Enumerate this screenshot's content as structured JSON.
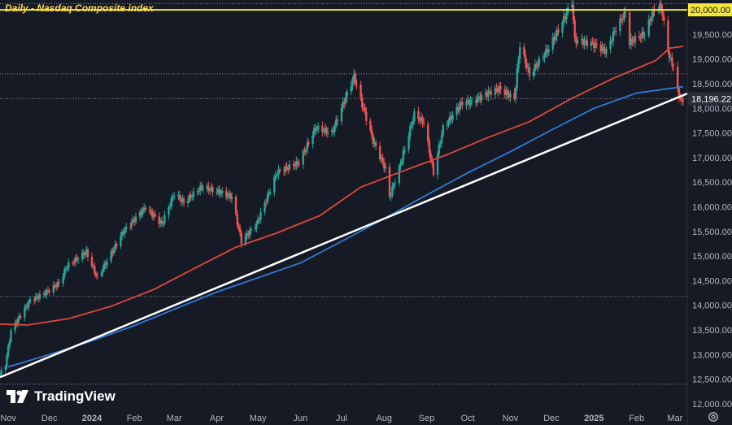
{
  "title": "Daily - Nasdaq Composite index",
  "branding": "TradingView",
  "icons": {
    "logo": "tradingview-logo-icon",
    "settings": "gear-icon"
  },
  "colors": {
    "background": "#161a25",
    "up_candle": "#26a69a",
    "down_candle": "#ef5350",
    "ma_red": "#e0483f",
    "ma_blue": "#2f7bd9",
    "trendline": "#ffffff",
    "resistance_line": "#f5e63c",
    "price_label_bg": "#2a2e39",
    "resistance_label_bg": "#f5e63c"
  },
  "chart_data": {
    "type": "candlestick",
    "title": "Daily - Nasdaq Composite index",
    "x_tick_labels": [
      "Nov",
      "Dec",
      "2024",
      "Feb",
      "Mar",
      "Apr",
      "May",
      "Jun",
      "Jul",
      "Aug",
      "Sep",
      "Oct",
      "Nov",
      "Dec",
      "2025",
      "Feb",
      "Mar"
    ],
    "x_tick_dates": [
      "2023-11-01",
      "2023-12-01",
      "2024-01-01",
      "2024-02-01",
      "2024-03-01",
      "2024-04-01",
      "2024-05-01",
      "2024-06-01",
      "2024-07-01",
      "2024-08-01",
      "2024-09-01",
      "2024-10-01",
      "2024-11-01",
      "2024-12-01",
      "2025-01-01",
      "2025-02-01",
      "2025-03-01"
    ],
    "x_range": [
      "2023-10-26",
      "2025-03-10"
    ],
    "y_tick_labels": [
      "20,000.00",
      "19,500.00",
      "19,000.00",
      "18,500.00",
      "18,196.22",
      "18,000.00",
      "17,500.00",
      "17,000.00",
      "16,500.00",
      "16,000.00",
      "15,500.00",
      "15,000.00",
      "14,500.00",
      "14,000.00",
      "13,500.00",
      "13,000.00",
      "12,500.00",
      "12,000.00"
    ],
    "y_ticks": [
      20000,
      19500,
      19000,
      18500,
      18000,
      17500,
      17000,
      16500,
      16000,
      15500,
      15000,
      14500,
      14000,
      13500,
      13000,
      12500,
      12000
    ],
    "ylim": [
      11900,
      20200
    ],
    "last_price": 18196.22,
    "resistance_level": 20000,
    "dotted_levels": [
      20128,
      18700,
      18196.22,
      14180,
      12400
    ],
    "close_path": [
      [
        "2023-10-26",
        12600
      ],
      [
        "2023-10-30",
        12800
      ],
      [
        "2023-11-03",
        13480
      ],
      [
        "2023-11-10",
        13800
      ],
      [
        "2023-11-17",
        14100
      ],
      [
        "2023-11-28",
        14250
      ],
      [
        "2023-12-08",
        14450
      ],
      [
        "2023-12-14",
        14800
      ],
      [
        "2023-12-28",
        15080
      ],
      [
        "2024-01-05",
        14550
      ],
      [
        "2024-01-12",
        14900
      ],
      [
        "2024-01-24",
        15500
      ],
      [
        "2024-02-09",
        15990
      ],
      [
        "2024-02-21",
        15650
      ],
      [
        "2024-03-01",
        16270
      ],
      [
        "2024-03-08",
        16090
      ],
      [
        "2024-03-21",
        16400
      ],
      [
        "2024-04-03",
        16300
      ],
      [
        "2024-04-12",
        16200
      ],
      [
        "2024-04-19",
        15300
      ],
      [
        "2024-04-30",
        15650
      ],
      [
        "2024-05-15",
        16700
      ],
      [
        "2024-05-31",
        16900
      ],
      [
        "2024-06-12",
        17600
      ],
      [
        "2024-06-24",
        17500
      ],
      [
        "2024-07-03",
        18150
      ],
      [
        "2024-07-10",
        18650
      ],
      [
        "2024-07-17",
        17990
      ],
      [
        "2024-07-24",
        17340
      ],
      [
        "2024-08-02",
        16770
      ],
      [
        "2024-08-05",
        16200
      ],
      [
        "2024-08-12",
        16780
      ],
      [
        "2024-08-23",
        17880
      ],
      [
        "2024-08-30",
        17710
      ],
      [
        "2024-09-06",
        16690
      ],
      [
        "2024-09-13",
        17600
      ],
      [
        "2024-09-27",
        18120
      ],
      [
        "2024-10-04",
        18130
      ],
      [
        "2024-10-15",
        18300
      ],
      [
        "2024-10-24",
        18400
      ],
      [
        "2024-11-04",
        18200
      ],
      [
        "2024-11-08",
        19290
      ],
      [
        "2024-11-15",
        18680
      ],
      [
        "2024-11-29",
        19220
      ],
      [
        "2024-12-09",
        19750
      ],
      [
        "2024-12-16",
        20170
      ],
      [
        "2024-12-18",
        19390
      ],
      [
        "2024-12-31",
        19310
      ],
      [
        "2025-01-10",
        19160
      ],
      [
        "2025-01-17",
        19630
      ],
      [
        "2025-01-24",
        19950
      ],
      [
        "2025-01-27",
        19340
      ],
      [
        "2025-02-07",
        19520
      ],
      [
        "2025-02-14",
        20020
      ],
      [
        "2025-02-19",
        20060
      ],
      [
        "2025-02-25",
        19030
      ],
      [
        "2025-02-28",
        18850
      ],
      [
        "2025-03-03",
        18350
      ],
      [
        "2025-03-06",
        18100
      ],
      [
        "2025-03-07",
        18196.22
      ]
    ],
    "moving_averages": [
      {
        "color": "#e0483f",
        "points": [
          [
            "2023-10-26",
            13620
          ],
          [
            "2023-11-15",
            13600
          ],
          [
            "2023-12-15",
            13730
          ],
          [
            "2024-01-15",
            13980
          ],
          [
            "2024-02-15",
            14320
          ],
          [
            "2024-03-15",
            14740
          ],
          [
            "2024-04-15",
            15180
          ],
          [
            "2024-05-15",
            15470
          ],
          [
            "2024-06-15",
            15820
          ],
          [
            "2024-07-15",
            16400
          ],
          [
            "2024-08-15",
            16730
          ],
          [
            "2024-09-15",
            17050
          ],
          [
            "2024-10-15",
            17400
          ],
          [
            "2024-11-15",
            17730
          ],
          [
            "2024-12-15",
            18190
          ],
          [
            "2025-01-15",
            18610
          ],
          [
            "2025-02-15",
            18970
          ],
          [
            "2025-02-25",
            19220
          ],
          [
            "2025-03-07",
            19260
          ]
        ]
      },
      {
        "color": "#2f7bd9",
        "points": [
          [
            "2023-11-01",
            12750
          ],
          [
            "2023-12-01",
            13000
          ],
          [
            "2024-01-01",
            13280
          ],
          [
            "2024-02-01",
            13590
          ],
          [
            "2024-03-01",
            13920
          ],
          [
            "2024-04-01",
            14270
          ],
          [
            "2024-05-01",
            14560
          ],
          [
            "2024-06-01",
            14860
          ],
          [
            "2024-07-01",
            15300
          ],
          [
            "2024-08-01",
            15760
          ],
          [
            "2024-09-01",
            16240
          ],
          [
            "2024-10-01",
            16690
          ],
          [
            "2024-11-01",
            17120
          ],
          [
            "2024-12-01",
            17560
          ],
          [
            "2025-01-01",
            18000
          ],
          [
            "2025-02-01",
            18310
          ],
          [
            "2025-03-07",
            18440
          ]
        ]
      }
    ],
    "trendline": [
      [
        "2023-10-26",
        12540
      ],
      [
        "2025-03-10",
        18300
      ]
    ]
  }
}
